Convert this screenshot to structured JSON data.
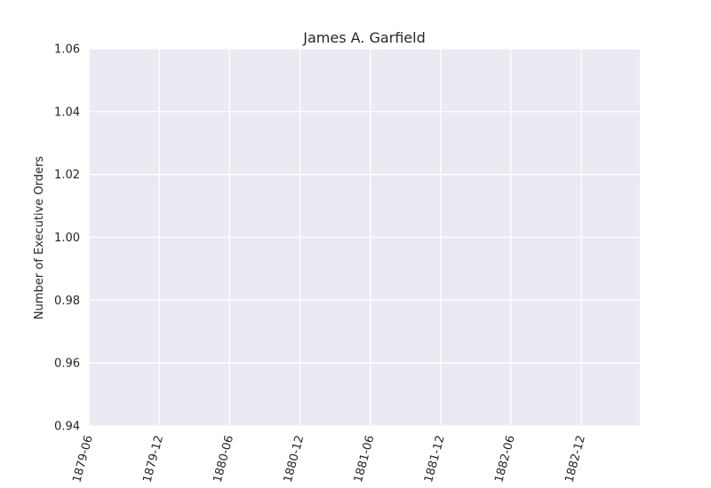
{
  "chart_data": {
    "type": "line",
    "title": "James A. Garfield",
    "xlabel": "",
    "ylabel": "Number of Executive Orders",
    "x_axis_type": "date",
    "x_tick_labels": [
      "1879-06",
      "1879-12",
      "1880-06",
      "1880-12",
      "1881-06",
      "1881-12",
      "1882-06",
      "1882-12"
    ],
    "y_ticks": [
      0.94,
      0.96,
      0.98,
      1.0,
      1.02,
      1.04,
      1.06
    ],
    "y_tick_labels": [
      "0.94",
      "0.96",
      "0.98",
      "1.00",
      "1.02",
      "1.04",
      "1.06"
    ],
    "ylim": [
      0.94,
      1.06
    ],
    "xlim": [
      "1879-06",
      "1883-05"
    ],
    "grid": true,
    "background_color": "#eaeaf2",
    "grid_color": "#ffffff",
    "series": []
  }
}
